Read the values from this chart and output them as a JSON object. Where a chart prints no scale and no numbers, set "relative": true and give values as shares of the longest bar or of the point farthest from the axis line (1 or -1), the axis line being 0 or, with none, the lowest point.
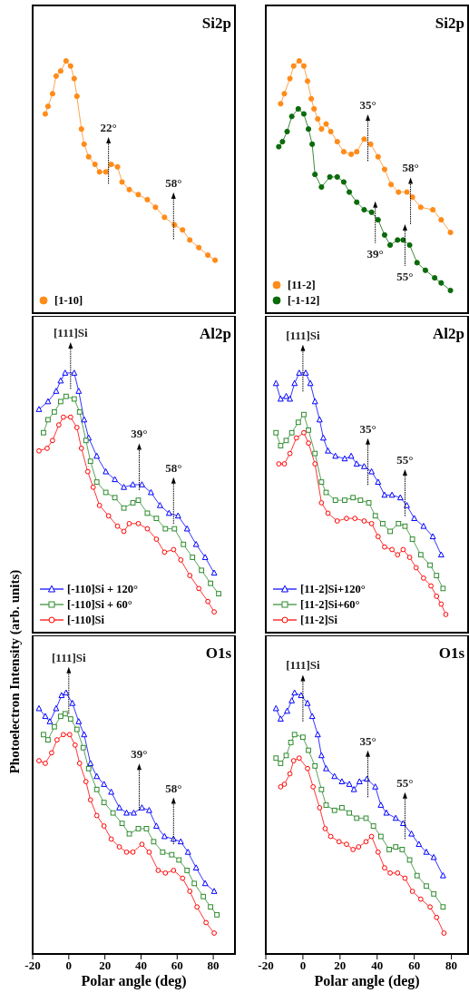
{
  "chart_data": [
    {
      "type": "line",
      "title": "Si2p",
      "relative": true,
      "xlim": [
        -20,
        92
      ],
      "tick_labels": false,
      "marker": "circle",
      "legend": "bottom left",
      "annotations": [
        "22°",
        "58°"
      ],
      "series": [
        {
          "name": "[1-10]",
          "color": "#ff8c1a",
          "x": [
            -13,
            -11.5,
            -9,
            -7,
            -4.5,
            -1.5,
            1,
            3,
            4.5,
            7,
            8.5,
            11,
            14.5,
            17,
            20.5,
            23.5,
            27,
            29.5,
            33.5,
            38.5,
            43.5,
            48,
            53,
            58.5,
            63,
            67,
            72,
            77,
            81
          ],
          "values": [
            0.79,
            0.82,
            0.87,
            0.94,
            0.96,
            1.0,
            0.98,
            0.93,
            0.86,
            0.73,
            0.67,
            0.62,
            0.59,
            0.56,
            0.56,
            0.59,
            0.58,
            0.52,
            0.49,
            0.47,
            0.45,
            0.42,
            0.38,
            0.35,
            0.33,
            0.29,
            0.26,
            0.23,
            0.21
          ]
        }
      ]
    },
    {
      "type": "line",
      "title": "Si2p",
      "relative": true,
      "xlim": [
        -20,
        89
      ],
      "tick_labels": false,
      "marker": "circle",
      "legend": "bottom left",
      "annotations": [
        "35°",
        "58°",
        "39°",
        "55°"
      ],
      "series": [
        {
          "name": "[11-2]",
          "color": "#ff8c1a",
          "x": [
            -12,
            -10,
            -7,
            -5,
            -2,
            0.5,
            2.5,
            4.5,
            6,
            8,
            10,
            12.5,
            15,
            18.5,
            22,
            26,
            29,
            33,
            36.5,
            40.5,
            44,
            47.5,
            51.5,
            56,
            59,
            63.5,
            70,
            74.5,
            79.5
          ],
          "values": [
            0.83,
            0.87,
            0.93,
            0.98,
            1.0,
            0.98,
            0.92,
            0.85,
            0.81,
            0.77,
            0.73,
            0.75,
            0.72,
            0.68,
            0.64,
            0.63,
            0.64,
            0.69,
            0.67,
            0.62,
            0.57,
            0.51,
            0.48,
            0.48,
            0.46,
            0.42,
            0.41,
            0.37,
            0.32
          ]
        },
        {
          "name": "[-1-12]",
          "color": "#0b6b0b",
          "x": [
            -13,
            -11,
            -8.5,
            -6,
            -2.5,
            0.5,
            3,
            5,
            6.5,
            10,
            14.5,
            18.5,
            22,
            25,
            29,
            33,
            37,
            40.5,
            44,
            47,
            51,
            54,
            57.5,
            61.5,
            66,
            71,
            74.5,
            79.5
          ],
          "values": [
            0.66,
            0.68,
            0.72,
            0.78,
            0.81,
            0.79,
            0.73,
            0.67,
            0.55,
            0.5,
            0.54,
            0.54,
            0.52,
            0.48,
            0.44,
            0.41,
            0.4,
            0.37,
            0.31,
            0.27,
            0.29,
            0.29,
            0.27,
            0.2,
            0.17,
            0.14,
            0.12,
            0.09
          ]
        }
      ]
    },
    {
      "type": "line",
      "title": "Al2p",
      "ylabel": "Photoelectron Intensity (arb. units)",
      "relative": true,
      "xlim": [
        -20,
        92
      ],
      "tick_labels": false,
      "legend": "bottom left",
      "annotations": [
        "[111]Si",
        "39°",
        "58°"
      ],
      "series": [
        {
          "name": "[-110]Si + 120°",
          "color": "#0000ff",
          "marker": "triangle",
          "x": [
            -16.5,
            -11.5,
            -7,
            -4.5,
            -2,
            3,
            5.5,
            8.5,
            11,
            15.5,
            20.5,
            25.5,
            30.5,
            35.5,
            40.5,
            45.5,
            50.5,
            55.5,
            60.5,
            65.5,
            70.5,
            75.5,
            80.5
          ],
          "values": [
            0.86,
            0.89,
            0.93,
            0.97,
            1.0,
            1.0,
            0.93,
            0.82,
            0.75,
            0.68,
            0.62,
            0.59,
            0.56,
            0.57,
            0.57,
            0.54,
            0.49,
            0.46,
            0.45,
            0.4,
            0.34,
            0.29,
            0.23
          ]
        },
        {
          "name": "[-110]Si + 60°",
          "color": "#2e8b2e",
          "marker": "square",
          "x": [
            -14,
            -11.5,
            -8,
            -4.5,
            -1.5,
            3,
            6,
            9.5,
            12,
            15.5,
            20.5,
            25.5,
            30.5,
            35.5,
            38.5,
            43.5,
            48.5,
            53.5,
            58.5,
            63.5,
            68.5,
            73.5,
            78.5,
            83
          ],
          "values": [
            0.77,
            0.82,
            0.85,
            0.89,
            0.91,
            0.9,
            0.85,
            0.74,
            0.66,
            0.58,
            0.54,
            0.52,
            0.48,
            0.5,
            0.51,
            0.46,
            0.44,
            0.4,
            0.4,
            0.34,
            0.29,
            0.24,
            0.19,
            0.15
          ]
        },
        {
          "name": "[-110]Si",
          "color": "#ff0000",
          "marker": "circle",
          "x": [
            -16.5,
            -12,
            -9,
            -5.5,
            -3,
            1,
            4.5,
            7,
            10.5,
            13.5,
            17,
            22,
            27,
            30.5,
            33.5,
            38.5,
            43.5,
            48.5,
            53,
            58,
            62,
            67,
            72,
            77,
            80.5
          ],
          "values": [
            0.7,
            0.71,
            0.74,
            0.8,
            0.83,
            0.83,
            0.79,
            0.71,
            0.62,
            0.56,
            0.49,
            0.45,
            0.41,
            0.39,
            0.42,
            0.42,
            0.4,
            0.36,
            0.31,
            0.32,
            0.28,
            0.22,
            0.17,
            0.12,
            0.08
          ]
        }
      ]
    },
    {
      "type": "line",
      "title": "Al2p",
      "relative": true,
      "xlim": [
        -20,
        89
      ],
      "tick_labels": false,
      "legend": "bottom left",
      "annotations": [
        "[111]Si",
        "35°",
        "55°"
      ],
      "series": [
        {
          "name": "[11-2]Si+120°",
          "color": "#0000ff",
          "marker": "triangle",
          "x": [
            -14.5,
            -12,
            -9,
            -7,
            -4.5,
            -2,
            1.5,
            4,
            6.5,
            9,
            11,
            13.5,
            17.5,
            22.5,
            26,
            29,
            33,
            37,
            40.5,
            44,
            48,
            52.5,
            56,
            60,
            65,
            70,
            74.5
          ],
          "values": [
            0.96,
            0.9,
            0.91,
            0.9,
            0.96,
            1.0,
            1.0,
            0.96,
            0.89,
            0.82,
            0.75,
            0.7,
            0.68,
            0.67,
            0.68,
            0.65,
            0.64,
            0.62,
            0.58,
            0.53,
            0.53,
            0.52,
            0.49,
            0.44,
            0.41,
            0.37,
            0.3
          ]
        },
        {
          "name": "[11-2]Si+60°",
          "color": "#2e8b2e",
          "marker": "square",
          "x": [
            -14.5,
            -12,
            -9,
            -6,
            -2.5,
            0.5,
            3,
            6.5,
            10,
            12.5,
            17.5,
            22.5,
            27,
            31,
            35.5,
            39,
            43,
            47,
            51.5,
            55,
            59,
            63.5,
            68.5,
            72,
            75.5
          ],
          "values": [
            0.77,
            0.72,
            0.74,
            0.77,
            0.81,
            0.84,
            0.78,
            0.69,
            0.58,
            0.54,
            0.51,
            0.51,
            0.52,
            0.51,
            0.5,
            0.45,
            0.42,
            0.39,
            0.42,
            0.41,
            0.36,
            0.3,
            0.26,
            0.22,
            0.17
          ]
        },
        {
          "name": "[11-2]Si",
          "color": "#ff0000",
          "marker": "circle",
          "x": [
            -13,
            -10,
            -7,
            -3.5,
            0.5,
            3,
            6.5,
            10,
            13.5,
            18.5,
            23.5,
            28,
            33,
            37,
            40.5,
            44,
            48,
            51,
            54,
            57.5,
            61,
            65,
            69,
            72,
            74.5,
            77
          ],
          "values": [
            0.65,
            0.65,
            0.69,
            0.75,
            0.77,
            0.73,
            0.65,
            0.5,
            0.46,
            0.43,
            0.44,
            0.44,
            0.43,
            0.42,
            0.37,
            0.33,
            0.32,
            0.3,
            0.32,
            0.29,
            0.25,
            0.21,
            0.18,
            0.14,
            0.11,
            0.07
          ]
        }
      ]
    },
    {
      "type": "line",
      "title": "O1s",
      "xlabel": "Polar angle (deg)",
      "relative": true,
      "xlim": [
        -20,
        92
      ],
      "xticks": [
        -20,
        0,
        20,
        40,
        60,
        80
      ],
      "tick_labels": "x",
      "annotations": [
        "[111]Si",
        "39°",
        "58°"
      ],
      "series": [
        {
          "color": "#0000ff",
          "marker": "triangle",
          "x": [
            -16.5,
            -13,
            -10.5,
            -7,
            -4,
            -1.5,
            2,
            5.5,
            8.5,
            12,
            15.5,
            19.5,
            23.5,
            28,
            32,
            36,
            40.5,
            44.5,
            48.5,
            53,
            58,
            62,
            66,
            70.5,
            75.5,
            80.5
          ],
          "values": [
            0.94,
            0.91,
            0.89,
            0.94,
            0.99,
            1.0,
            0.96,
            0.89,
            0.84,
            0.73,
            0.68,
            0.65,
            0.62,
            0.56,
            0.54,
            0.54,
            0.56,
            0.55,
            0.49,
            0.45,
            0.44,
            0.43,
            0.39,
            0.33,
            0.27,
            0.24
          ]
        },
        {
          "color": "#2e8b2e",
          "marker": "square",
          "x": [
            -14,
            -11.5,
            -8,
            -4.5,
            -2,
            1,
            4.5,
            8,
            11,
            15.5,
            19.5,
            24.5,
            29.5,
            33.5,
            38.5,
            43,
            47,
            52,
            57,
            61,
            65.5,
            69.5,
            74.5,
            78.5,
            82
          ],
          "values": [
            0.84,
            0.82,
            0.87,
            0.91,
            0.92,
            0.9,
            0.86,
            0.79,
            0.71,
            0.63,
            0.58,
            0.54,
            0.5,
            0.46,
            0.48,
            0.48,
            0.43,
            0.39,
            0.38,
            0.36,
            0.32,
            0.27,
            0.22,
            0.18,
            0.15
          ]
        },
        {
          "color": "#ff0000",
          "marker": "circle",
          "x": [
            -16.5,
            -13,
            -9.5,
            -6.5,
            -3,
            0.5,
            3.5,
            6,
            9.5,
            12,
            15.5,
            19.5,
            23.5,
            28,
            32,
            35.5,
            40.5,
            44.5,
            49.5,
            53.5,
            58,
            63,
            67,
            71,
            76,
            80.5
          ],
          "values": [
            0.74,
            0.73,
            0.77,
            0.82,
            0.84,
            0.84,
            0.8,
            0.73,
            0.66,
            0.59,
            0.53,
            0.49,
            0.44,
            0.41,
            0.39,
            0.39,
            0.42,
            0.39,
            0.32,
            0.31,
            0.32,
            0.29,
            0.24,
            0.18,
            0.12,
            0.08
          ]
        }
      ]
    },
    {
      "type": "line",
      "title": "O1s",
      "xlabel": "Polar angle (deg)",
      "relative": true,
      "xlim": [
        -20,
        89
      ],
      "xticks": [
        -20,
        0,
        20,
        40,
        60,
        80
      ],
      "tick_labels": "x",
      "annotations": [
        "[111]Si",
        "35°",
        "55°"
      ],
      "series": [
        {
          "color": "#0000ff",
          "marker": "triangle",
          "x": [
            -14.5,
            -12,
            -8.5,
            -6,
            -4.5,
            -1,
            2.5,
            5,
            8,
            10,
            12.5,
            17,
            21,
            25,
            27.5,
            30.5,
            34.5,
            39,
            42,
            45,
            50,
            54,
            58.5,
            62.5,
            66.5,
            70.5,
            75.5
          ],
          "values": [
            0.94,
            0.9,
            0.93,
            0.97,
            1.0,
            0.99,
            0.96,
            0.91,
            0.84,
            0.76,
            0.71,
            0.68,
            0.66,
            0.65,
            0.63,
            0.66,
            0.67,
            0.64,
            0.57,
            0.54,
            0.52,
            0.5,
            0.46,
            0.42,
            0.39,
            0.37,
            0.3
          ]
        },
        {
          "color": "#2e8b2e",
          "marker": "square",
          "x": [
            -14.5,
            -12,
            -9,
            -6.5,
            -4.5,
            0,
            3,
            6.5,
            10,
            12.5,
            17,
            21,
            25,
            29,
            34,
            38,
            42,
            46.5,
            50,
            53.5,
            57.5,
            61.5,
            66.5,
            70.5,
            75.5
          ],
          "values": [
            0.75,
            0.73,
            0.76,
            0.81,
            0.84,
            0.83,
            0.78,
            0.72,
            0.63,
            0.57,
            0.55,
            0.56,
            0.54,
            0.52,
            0.52,
            0.49,
            0.45,
            0.4,
            0.41,
            0.4,
            0.36,
            0.3,
            0.26,
            0.23,
            0.18
          ]
        },
        {
          "color": "#ff0000",
          "marker": "circle",
          "x": [
            -12,
            -10,
            -7,
            -5,
            -2,
            2.5,
            5.5,
            9,
            12,
            15,
            19.5,
            23.5,
            27,
            30,
            34,
            37,
            40.5,
            44,
            47,
            51,
            55,
            59,
            63.5,
            68.5,
            72,
            76
          ],
          "values": [
            0.64,
            0.65,
            0.69,
            0.74,
            0.75,
            0.71,
            0.64,
            0.56,
            0.48,
            0.45,
            0.43,
            0.42,
            0.4,
            0.41,
            0.43,
            0.45,
            0.39,
            0.33,
            0.31,
            0.31,
            0.29,
            0.24,
            0.21,
            0.18,
            0.14,
            0.08
          ]
        }
      ]
    }
  ]
}
